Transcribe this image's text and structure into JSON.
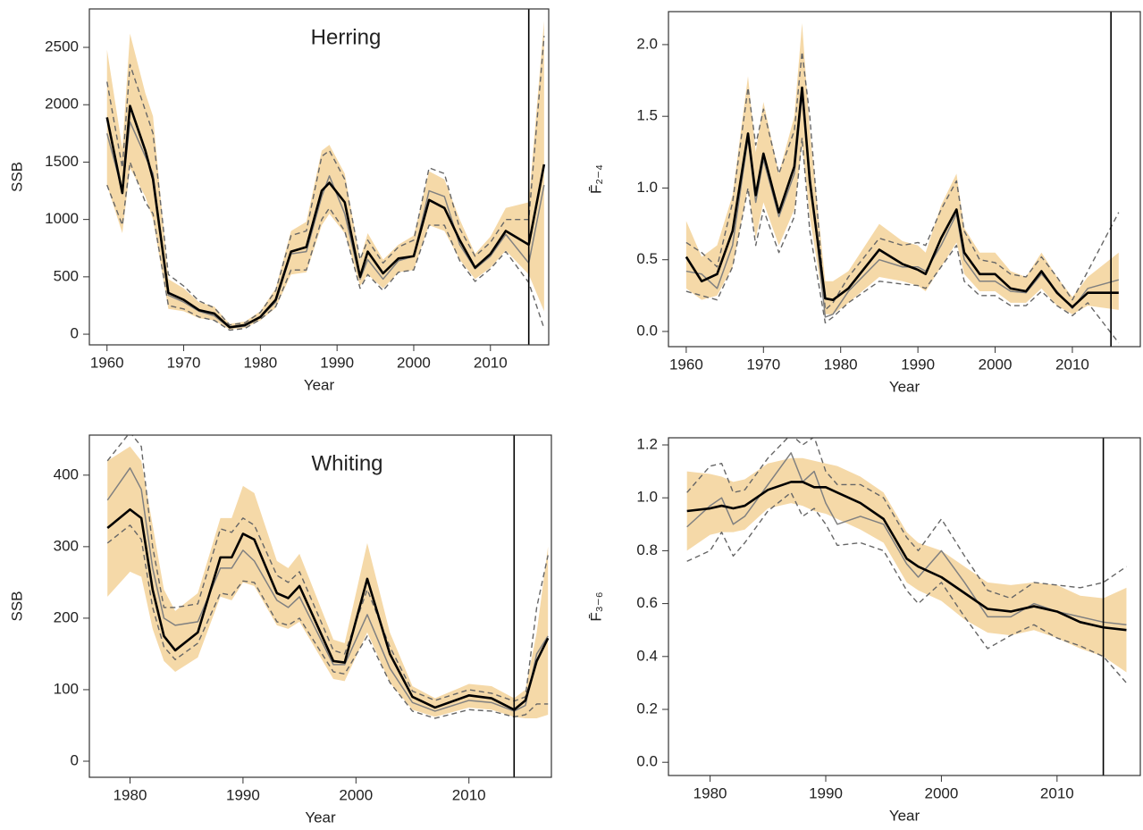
{
  "chart_data": [
    {
      "type": "line",
      "annotation": "Herring",
      "ylabel": "SSB",
      "xlabel": "Year",
      "xlim": [
        1957.7,
        2017.6
      ],
      "ylim": [
        -93,
        2835
      ],
      "xticks": [
        1960,
        1970,
        1980,
        1990,
        2000,
        2010
      ],
      "yticks": [
        0,
        500,
        1000,
        1500,
        2000,
        2500
      ],
      "vline": 2015,
      "x": [
        1960,
        1962,
        1963,
        1965,
        1966,
        1968,
        1970,
        1972,
        1974,
        1976,
        1978,
        1980,
        1982,
        1984,
        1986,
        1988,
        1989,
        1991,
        1993,
        1994,
        1996,
        1998,
        2000,
        2002,
        2004,
        2006,
        2008,
        2010,
        2012,
        2015,
        2017
      ],
      "band": {
        "color": "#f5d9a8",
        "lower": [
          1300,
          880,
          1450,
          1200,
          1000,
          220,
          200,
          140,
          120,
          40,
          55,
          120,
          230,
          520,
          540,
          950,
          1050,
          880,
          420,
          520,
          400,
          540,
          560,
          950,
          900,
          650,
          480,
          580,
          730,
          520,
          200
        ],
        "upper": [
          2480,
          1620,
          2620,
          2100,
          1900,
          480,
          400,
          280,
          240,
          90,
          110,
          200,
          400,
          900,
          980,
          1600,
          1650,
          1400,
          650,
          880,
          650,
          780,
          860,
          1420,
          1350,
          1000,
          700,
          850,
          1100,
          1150,
          2730
        ]
      },
      "series": [
        {
          "style": "dashed",
          "color": "#666666",
          "values": [
            1300,
            950,
            1500,
            1150,
            1050,
            250,
            220,
            150,
            120,
            35,
            50,
            130,
            240,
            560,
            560,
            1000,
            1100,
            900,
            400,
            520,
            380,
            540,
            560,
            950,
            950,
            640,
            460,
            570,
            720,
            450,
            50
          ]
        },
        {
          "style": "dashed",
          "color": "#666666",
          "values": [
            2200,
            1450,
            2350,
            1950,
            1750,
            520,
            420,
            290,
            230,
            80,
            100,
            190,
            380,
            860,
            900,
            1550,
            1600,
            1350,
            650,
            820,
            620,
            760,
            820,
            1450,
            1400,
            920,
            680,
            800,
            1000,
            1000,
            2600
          ]
        },
        {
          "style": "thin",
          "color": "#808080",
          "values": [
            1750,
            1250,
            1850,
            1550,
            1400,
            340,
            280,
            200,
            160,
            55,
            70,
            150,
            280,
            700,
            720,
            1200,
            1380,
            1050,
            480,
            650,
            480,
            640,
            680,
            1250,
            1200,
            780,
            570,
            680,
            870,
            620,
            1300
          ]
        },
        {
          "style": "bold",
          "color": "#000000",
          "values": [
            1890,
            1230,
            1990,
            1600,
            1350,
            360,
            300,
            210,
            180,
            60,
            80,
            150,
            300,
            720,
            760,
            1250,
            1320,
            1150,
            500,
            720,
            530,
            660,
            680,
            1170,
            1100,
            820,
            580,
            700,
            900,
            780,
            1480
          ]
        }
      ]
    },
    {
      "type": "line",
      "ylabel": "F̄₂₋₄",
      "xlabel": "Year",
      "xlim": [
        1957.7,
        2018.8
      ],
      "ylim": [
        -0.106,
        2.23
      ],
      "xticks": [
        1960,
        1970,
        1980,
        1990,
        2000,
        2010
      ],
      "yticks": [
        {
          "value": 0,
          "label": "0.0"
        },
        0.5,
        {
          "value": 1,
          "label": "1.0"
        },
        1.5,
        {
          "value": 2,
          "label": "2.0"
        }
      ],
      "vline": 2015,
      "x": [
        1960,
        1962,
        1964,
        1966,
        1968,
        1969,
        1970,
        1972,
        1974,
        1975,
        1976,
        1978,
        1979,
        1981,
        1985,
        1988,
        1990,
        1991,
        1993,
        1995,
        1996,
        1998,
        2000,
        2002,
        2004,
        2006,
        2008,
        2010,
        2012,
        2016
      ],
      "band": {
        "color": "#f5d9a8",
        "lower": [
          0.3,
          0.22,
          0.25,
          0.45,
          1.0,
          0.65,
          0.9,
          0.6,
          0.85,
          1.3,
          0.8,
          0.12,
          0.12,
          0.2,
          0.38,
          0.35,
          0.32,
          0.28,
          0.45,
          0.62,
          0.4,
          0.28,
          0.28,
          0.2,
          0.2,
          0.3,
          0.18,
          0.12,
          0.18,
          0.15
        ],
        "upper": [
          0.77,
          0.52,
          0.6,
          0.95,
          1.78,
          1.25,
          1.6,
          1.1,
          1.5,
          2.15,
          1.4,
          0.35,
          0.35,
          0.42,
          0.75,
          0.63,
          0.6,
          0.55,
          0.88,
          1.1,
          0.72,
          0.55,
          0.55,
          0.42,
          0.38,
          0.55,
          0.38,
          0.24,
          0.38,
          0.55
        ]
      },
      "series": [
        {
          "style": "dashed",
          "color": "#666666",
          "values": [
            0.28,
            0.25,
            0.22,
            0.45,
            1.0,
            0.6,
            0.85,
            0.55,
            0.8,
            1.35,
            0.7,
            0.06,
            0.1,
            0.2,
            0.35,
            0.33,
            0.32,
            0.3,
            0.45,
            0.6,
            0.35,
            0.25,
            0.25,
            0.18,
            0.18,
            0.28,
            0.18,
            0.11,
            0.2,
            -0.08
          ]
        },
        {
          "style": "dashed",
          "color": "#666666",
          "values": [
            0.62,
            0.55,
            0.45,
            0.9,
            1.7,
            1.3,
            1.55,
            1.1,
            1.4,
            1.95,
            1.5,
            0.15,
            0.2,
            0.38,
            0.65,
            0.6,
            0.62,
            0.6,
            0.85,
            1.05,
            0.7,
            0.5,
            0.48,
            0.4,
            0.38,
            0.52,
            0.38,
            0.22,
            0.42,
            0.83
          ]
        },
        {
          "style": "thin",
          "color": "#808080",
          "values": [
            0.42,
            0.4,
            0.3,
            0.6,
            1.35,
            0.9,
            1.2,
            0.8,
            1.1,
            1.65,
            1.1,
            0.1,
            0.12,
            0.28,
            0.5,
            0.45,
            0.45,
            0.42,
            0.6,
            0.82,
            0.5,
            0.35,
            0.35,
            0.28,
            0.27,
            0.4,
            0.28,
            0.16,
            0.3,
            0.36
          ]
        },
        {
          "style": "bold",
          "color": "#000000",
          "values": [
            0.52,
            0.35,
            0.4,
            0.7,
            1.38,
            0.95,
            1.24,
            0.83,
            1.15,
            1.7,
            1.05,
            0.23,
            0.22,
            0.3,
            0.57,
            0.47,
            0.43,
            0.4,
            0.65,
            0.85,
            0.55,
            0.4,
            0.4,
            0.3,
            0.28,
            0.42,
            0.27,
            0.17,
            0.27,
            0.27
          ]
        }
      ]
    },
    {
      "type": "line",
      "annotation": "Whiting",
      "ylabel": "SSB",
      "xlabel": "Year",
      "xlim": [
        1976.4,
        2017.3
      ],
      "ylim": [
        -22.5,
        456
      ],
      "xticks": [
        1980,
        1990,
        2000,
        2010
      ],
      "yticks": [
        0,
        100,
        200,
        300,
        400
      ],
      "vline": 2014,
      "x": [
        1978,
        1980,
        1981,
        1982,
        1983,
        1984,
        1986,
        1988,
        1989,
        1990,
        1991,
        1993,
        1994,
        1995,
        1998,
        1999,
        2001,
        2003,
        2005,
        2007,
        2010,
        2012,
        2014,
        2015,
        2016,
        2017
      ],
      "band": {
        "color": "#f5d9a8",
        "lower": [
          230,
          265,
          258,
          185,
          140,
          125,
          145,
          230,
          225,
          250,
          245,
          190,
          185,
          195,
          115,
          112,
          180,
          110,
          72,
          62,
          75,
          72,
          62,
          60,
          60,
          65
        ],
        "upper": [
          420,
          440,
          420,
          330,
          240,
          210,
          235,
          340,
          340,
          385,
          375,
          280,
          270,
          290,
          170,
          165,
          305,
          180,
          105,
          88,
          108,
          105,
          88,
          100,
          180,
          300
        ]
      },
      "series": [
        {
          "style": "dashed",
          "color": "#666666",
          "values": [
            305,
            330,
            310,
            215,
            160,
            142,
            165,
            235,
            232,
            252,
            250,
            195,
            190,
            200,
            125,
            122,
            175,
            110,
            70,
            60,
            72,
            70,
            62,
            65,
            80,
            80
          ]
        },
        {
          "style": "dashed",
          "color": "#666666",
          "values": [
            420,
            460,
            440,
            300,
            215,
            215,
            220,
            325,
            320,
            340,
            330,
            260,
            250,
            265,
            155,
            150,
            240,
            160,
            98,
            85,
            100,
            95,
            84,
            90,
            215,
            288
          ]
        },
        {
          "style": "thin",
          "color": "#808080",
          "values": [
            365,
            410,
            380,
            270,
            200,
            190,
            195,
            270,
            270,
            295,
            280,
            225,
            215,
            230,
            135,
            135,
            205,
            130,
            82,
            70,
            85,
            82,
            70,
            78,
            150,
            175
          ]
        },
        {
          "style": "bold",
          "color": "#000000",
          "values": [
            326,
            352,
            340,
            240,
            175,
            155,
            180,
            285,
            285,
            318,
            310,
            235,
            228,
            245,
            140,
            138,
            255,
            150,
            90,
            75,
            92,
            88,
            72,
            85,
            140,
            172
          ]
        }
      ]
    },
    {
      "type": "line",
      "ylabel": "F̄₃₋₆",
      "xlabel": "Year",
      "xlim": [
        1976.4,
        2017.2
      ],
      "ylim": [
        -0.05,
        1.227
      ],
      "xticks": [
        1980,
        1990,
        2000,
        2010
      ],
      "yticks": [
        {
          "value": 0,
          "label": "0.0"
        },
        0.2,
        0.4,
        0.6,
        0.8,
        {
          "value": 1,
          "label": "1.0"
        },
        1.2
      ],
      "vline": 2014,
      "x": [
        1978,
        1980,
        1981,
        1982,
        1983,
        1985,
        1987,
        1988,
        1989,
        1990,
        1991,
        1993,
        1995,
        1997,
        1998,
        2000,
        2002,
        2004,
        2006,
        2008,
        2010,
        2012,
        2014,
        2016
      ],
      "band": {
        "color": "#f5d9a8",
        "lower": [
          0.8,
          0.86,
          0.87,
          0.87,
          0.88,
          0.96,
          0.98,
          0.97,
          0.95,
          0.94,
          0.92,
          0.88,
          0.83,
          0.68,
          0.65,
          0.61,
          0.54,
          0.49,
          0.48,
          0.5,
          0.47,
          0.43,
          0.4,
          0.34
        ],
        "upper": [
          1.1,
          1.09,
          1.08,
          1.06,
          1.07,
          1.13,
          1.15,
          1.15,
          1.14,
          1.13,
          1.12,
          1.08,
          1.02,
          0.87,
          0.83,
          0.8,
          0.74,
          0.68,
          0.67,
          0.68,
          0.67,
          0.63,
          0.62,
          0.66
        ]
      },
      "series": [
        {
          "style": "dashed",
          "color": "#666666",
          "values": [
            0.76,
            0.8,
            0.87,
            0.78,
            0.83,
            0.95,
            1.02,
            0.93,
            0.96,
            0.9,
            0.82,
            0.83,
            0.8,
            0.65,
            0.6,
            0.68,
            0.55,
            0.43,
            0.48,
            0.52,
            0.47,
            0.44,
            0.4,
            0.3
          ]
        },
        {
          "style": "dashed",
          "color": "#666666",
          "values": [
            1.02,
            1.12,
            1.13,
            1.02,
            1.03,
            1.15,
            1.24,
            1.2,
            1.23,
            1.1,
            1.05,
            1.05,
            1.0,
            0.85,
            0.8,
            0.92,
            0.78,
            0.65,
            0.62,
            0.68,
            0.67,
            0.66,
            0.68,
            0.74
          ]
        },
        {
          "style": "thin",
          "color": "#808080",
          "values": [
            0.89,
            0.97,
            1.0,
            0.9,
            0.93,
            1.05,
            1.17,
            1.06,
            1.1,
            0.98,
            0.9,
            0.93,
            0.9,
            0.75,
            0.7,
            0.8,
            0.68,
            0.55,
            0.55,
            0.6,
            0.57,
            0.55,
            0.53,
            0.52
          ]
        },
        {
          "style": "bold",
          "color": "#000000",
          "values": [
            0.95,
            0.96,
            0.97,
            0.96,
            0.97,
            1.03,
            1.06,
            1.06,
            1.04,
            1.04,
            1.02,
            0.98,
            0.92,
            0.77,
            0.74,
            0.7,
            0.64,
            0.58,
            0.57,
            0.59,
            0.57,
            0.53,
            0.51,
            0.5
          ]
        }
      ]
    }
  ]
}
